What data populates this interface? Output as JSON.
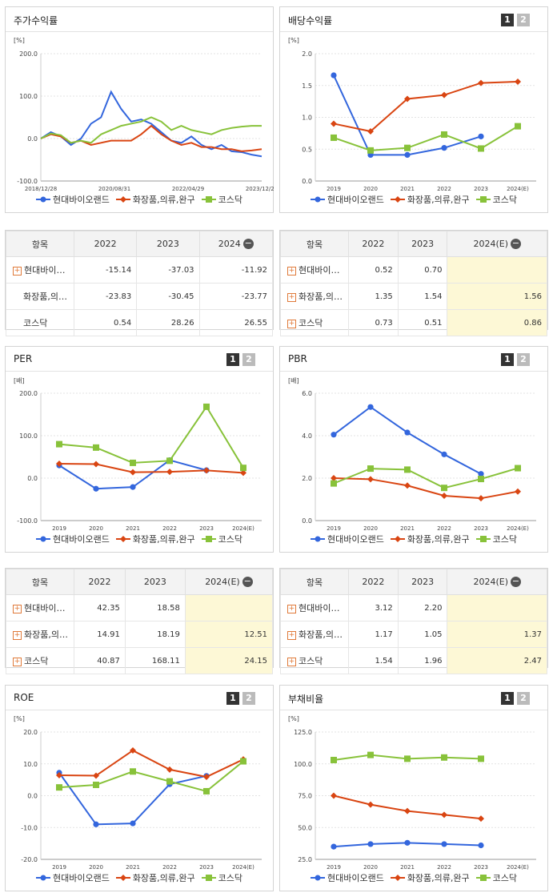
{
  "colors": {
    "s1": "#3366dd",
    "s2": "#d94512",
    "s3": "#88c23a"
  },
  "series_names": [
    "현대바이오랜드",
    "화장품,의류,완구",
    "코스닥"
  ],
  "panels": {
    "p1": {
      "title": "주가수익률",
      "unit": "[%]"
    },
    "p2": {
      "title": "배당수익률",
      "unit": "[%]"
    },
    "p3": {
      "title": "PER",
      "unit": "[배]"
    },
    "p4": {
      "title": "PBR",
      "unit": "[배]"
    },
    "p5": {
      "title": "ROE",
      "unit": "[%]"
    },
    "p6": {
      "title": "부채비율",
      "unit": "[%]"
    }
  },
  "pager": {
    "one": "1",
    "two": "2"
  },
  "tables": {
    "t1": {
      "head": [
        "항목",
        "2022",
        "2023",
        "2024"
      ],
      "rows": [
        {
          "name": "현대바이…",
          "vals": [
            "-15.14",
            "-37.03",
            "-11.92"
          ]
        },
        {
          "name": "화장품,의…",
          "vals": [
            "-23.83",
            "-30.45",
            "-23.77"
          ]
        },
        {
          "name": "코스닥",
          "vals": [
            "0.54",
            "28.26",
            "26.55"
          ]
        }
      ]
    },
    "t2": {
      "head": [
        "항목",
        "2022",
        "2023",
        "2024(E)"
      ],
      "rows": [
        {
          "name": "현대바이…",
          "vals": [
            "0.52",
            "0.70",
            ""
          ]
        },
        {
          "name": "화장품,의…",
          "vals": [
            "1.35",
            "1.54",
            "1.56"
          ]
        },
        {
          "name": "코스닥",
          "vals": [
            "0.73",
            "0.51",
            "0.86"
          ]
        }
      ]
    },
    "t3": {
      "head": [
        "항목",
        "2022",
        "2023",
        "2024(E)"
      ],
      "rows": [
        {
          "name": "현대바이…",
          "vals": [
            "42.35",
            "18.58",
            ""
          ]
        },
        {
          "name": "화장품,의…",
          "vals": [
            "14.91",
            "18.19",
            "12.51"
          ]
        },
        {
          "name": "코스닥",
          "vals": [
            "40.87",
            "168.11",
            "24.15"
          ]
        }
      ]
    },
    "t4": {
      "head": [
        "항목",
        "2022",
        "2023",
        "2024(E)"
      ],
      "rows": [
        {
          "name": "현대바이…",
          "vals": [
            "3.12",
            "2.20",
            ""
          ]
        },
        {
          "name": "화장품,의…",
          "vals": [
            "1.17",
            "1.05",
            "1.37"
          ]
        },
        {
          "name": "코스닥",
          "vals": [
            "1.54",
            "1.96",
            "2.47"
          ]
        }
      ]
    }
  },
  "chart_data": [
    {
      "type": "line",
      "title": "주가수익률",
      "ylabel": "[%]",
      "ylim": [
        -100,
        200
      ],
      "yticks": [
        "200.0",
        "100.0",
        "0.0",
        "-100.0"
      ],
      "xticks": [
        "2018/12/28",
        "2020/08/31",
        "2022/04/29",
        "2023/12/28"
      ],
      "x": [
        "2018/12",
        "2019/03",
        "2019/06",
        "2019/09",
        "2019/12",
        "2020/03",
        "2020/06",
        "2020/08",
        "2020/09",
        "2020/10",
        "2020/12",
        "2021/03",
        "2021/06",
        "2021/09",
        "2021/12",
        "2022/03",
        "2022/06",
        "2022/09",
        "2022/12",
        "2023/03",
        "2023/06",
        "2023/09",
        "2023/12"
      ],
      "series": [
        {
          "name": "현대바이오랜드",
          "values": [
            0,
            15,
            5,
            -15,
            0,
            35,
            50,
            110,
            70,
            40,
            45,
            35,
            15,
            -5,
            -10,
            5,
            -15,
            -25,
            -15,
            -30,
            -32,
            -38,
            -42
          ]
        },
        {
          "name": "화장품,의류,완구",
          "values": [
            0,
            10,
            5,
            -10,
            -5,
            -15,
            -10,
            -5,
            -5,
            -5,
            10,
            30,
            10,
            -5,
            -15,
            -10,
            -20,
            -20,
            -25,
            -25,
            -30,
            -28,
            -25
          ]
        },
        {
          "name": "코스닥",
          "values": [
            0,
            12,
            8,
            -10,
            -5,
            -10,
            10,
            20,
            30,
            35,
            40,
            50,
            40,
            20,
            30,
            20,
            15,
            10,
            20,
            25,
            28,
            30,
            30
          ]
        }
      ]
    },
    {
      "type": "line",
      "title": "배당수익률",
      "ylabel": "[%]",
      "ylim": [
        0,
        2
      ],
      "yticks": [
        "2.0",
        "1.5",
        "1.0",
        "0.5",
        "0.0"
      ],
      "categories": [
        "2019",
        "2020",
        "2021",
        "2022",
        "2023",
        "2024(E)"
      ],
      "series": [
        {
          "name": "현대바이오랜드",
          "values": [
            1.66,
            0.41,
            0.41,
            0.52,
            0.7,
            null
          ]
        },
        {
          "name": "화장품,의류,완구",
          "values": [
            0.9,
            0.78,
            1.29,
            1.35,
            1.54,
            1.56
          ]
        },
        {
          "name": "코스닥",
          "values": [
            0.68,
            0.48,
            0.52,
            0.73,
            0.51,
            0.86
          ]
        }
      ]
    },
    {
      "type": "line",
      "title": "PER",
      "ylabel": "[배]",
      "ylim": [
        -100,
        200
      ],
      "yticks": [
        "200.0",
        "100.0",
        "0.0",
        "-100.0"
      ],
      "categories": [
        "2019",
        "2020",
        "2021",
        "2022",
        "2023",
        "2024(E)"
      ],
      "series": [
        {
          "name": "현대바이오랜드",
          "values": [
            30,
            -25,
            -21,
            42.35,
            18.58,
            null
          ]
        },
        {
          "name": "화장품,의류,완구",
          "values": [
            34,
            33,
            14,
            14.91,
            18.19,
            12.51
          ]
        },
        {
          "name": "코스닥",
          "values": [
            80,
            72,
            36,
            40.87,
            168.11,
            24.15
          ]
        }
      ]
    },
    {
      "type": "line",
      "title": "PBR",
      "ylabel": "[배]",
      "ylim": [
        0,
        6
      ],
      "yticks": [
        "6.0",
        "4.0",
        "2.0",
        "0.0"
      ],
      "categories": [
        "2019",
        "2020",
        "2021",
        "2022",
        "2023",
        "2024(E)"
      ],
      "series": [
        {
          "name": "현대바이오랜드",
          "values": [
            4.05,
            5.35,
            4.15,
            3.12,
            2.2,
            null
          ]
        },
        {
          "name": "화장품,의류,완구",
          "values": [
            2.0,
            1.95,
            1.65,
            1.17,
            1.05,
            1.37
          ]
        },
        {
          "name": "코스닥",
          "values": [
            1.75,
            2.45,
            2.4,
            1.54,
            1.96,
            2.47
          ]
        }
      ]
    },
    {
      "type": "line",
      "title": "ROE",
      "ylabel": "[%]",
      "ylim": [
        -20,
        20
      ],
      "yticks": [
        "20.0",
        "10.0",
        "0.0",
        "-10.0",
        "-20.0"
      ],
      "categories": [
        "2019",
        "2020",
        "2021",
        "2022",
        "2023",
        "2024(E)"
      ],
      "series": [
        {
          "name": "현대바이오랜드",
          "values": [
            7.2,
            -9.0,
            -8.7,
            3.6,
            6.2,
            null
          ]
        },
        {
          "name": "화장품,의류,완구",
          "values": [
            6.4,
            6.3,
            14.2,
            8.2,
            5.9,
            11.4
          ]
        },
        {
          "name": "코스닥",
          "values": [
            2.6,
            3.4,
            7.6,
            4.5,
            1.4,
            10.8
          ]
        }
      ]
    },
    {
      "type": "line",
      "title": "부채비율",
      "ylabel": "[%]",
      "ylim": [
        25,
        125
      ],
      "yticks": [
        "125.0",
        "100.0",
        "75.0",
        "50.0",
        "25.0"
      ],
      "categories": [
        "2019",
        "2020",
        "2021",
        "2022",
        "2023",
        "2024(E)"
      ],
      "series": [
        {
          "name": "현대바이오랜드",
          "values": [
            35,
            37,
            38,
            37,
            36,
            null
          ]
        },
        {
          "name": "화장품,의류,완구",
          "values": [
            75,
            68,
            63,
            60,
            57,
            null
          ]
        },
        {
          "name": "코스닥",
          "values": [
            103,
            107,
            104,
            105,
            104,
            null
          ]
        }
      ]
    }
  ]
}
